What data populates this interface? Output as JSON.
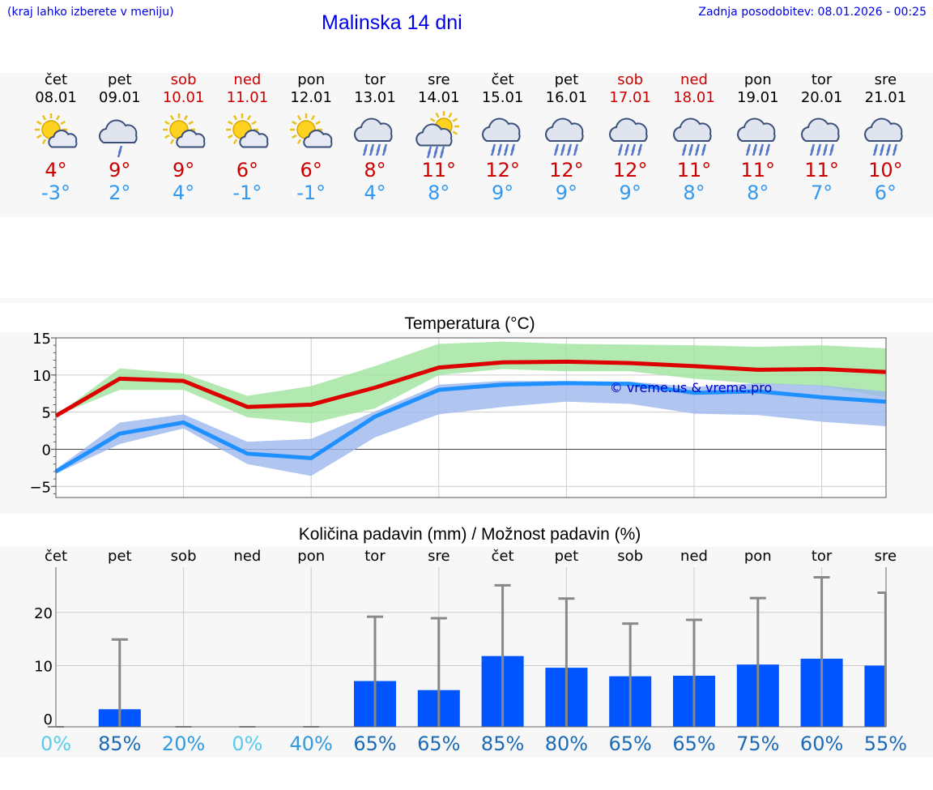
{
  "header": {
    "hint": "(kraj lahko izberete v meniju)",
    "title": "Malinska 14 dni",
    "updated": "Zadnja posodobitev: 08.01.2026 - 00:25"
  },
  "colors": {
    "max": "#dd0000",
    "min": "#1e90ff",
    "maxBand": "#9de39d",
    "minBand": "#9cb8ee",
    "bar": "#0055ff",
    "whisker": "#888888",
    "weekend": "#cc0000"
  },
  "days": [
    {
      "name": "čet",
      "date": "08.01",
      "weekend": false,
      "icon": "sun-cloud-icon",
      "tmax": "4°",
      "tmin": "-3°"
    },
    {
      "name": "pet",
      "date": "09.01",
      "weekend": false,
      "icon": "rain-icon",
      "tmax": "9°",
      "tmin": "2°"
    },
    {
      "name": "sob",
      "date": "10.01",
      "weekend": true,
      "icon": "sun-cloud-icon",
      "tmax": "9°",
      "tmin": "4°"
    },
    {
      "name": "ned",
      "date": "11.01",
      "weekend": true,
      "icon": "sun-cloud-icon",
      "tmax": "6°",
      "tmin": "-1°"
    },
    {
      "name": "pon",
      "date": "12.01",
      "weekend": false,
      "icon": "sun-cloud-icon",
      "tmax": "6°",
      "tmin": "-1°"
    },
    {
      "name": "tor",
      "date": "13.01",
      "weekend": false,
      "icon": "heavy-rain-icon",
      "tmax": "8°",
      "tmin": "4°"
    },
    {
      "name": "sre",
      "date": "14.01",
      "weekend": false,
      "icon": "sun-rain-icon",
      "tmax": "11°",
      "tmin": "8°"
    },
    {
      "name": "čet",
      "date": "15.01",
      "weekend": false,
      "icon": "heavy-rain-icon",
      "tmax": "12°",
      "tmin": "9°"
    },
    {
      "name": "pet",
      "date": "16.01",
      "weekend": false,
      "icon": "heavy-rain-icon",
      "tmax": "12°",
      "tmin": "9°"
    },
    {
      "name": "sob",
      "date": "17.01",
      "weekend": true,
      "icon": "heavy-rain-icon",
      "tmax": "12°",
      "tmin": "9°"
    },
    {
      "name": "ned",
      "date": "18.01",
      "weekend": true,
      "icon": "heavy-rain-icon",
      "tmax": "11°",
      "tmin": "8°"
    },
    {
      "name": "pon",
      "date": "19.01",
      "weekend": false,
      "icon": "heavy-rain-icon",
      "tmax": "11°",
      "tmin": "8°"
    },
    {
      "name": "tor",
      "date": "20.01",
      "weekend": false,
      "icon": "heavy-rain-icon",
      "tmax": "11°",
      "tmin": "7°"
    },
    {
      "name": "sre",
      "date": "21.01",
      "weekend": false,
      "icon": "heavy-rain-icon",
      "tmax": "10°",
      "tmin": "6°"
    }
  ],
  "chart_data": [
    {
      "type": "line",
      "title": "Temperatura (°C)",
      "watermark": "© vreme.us & vreme.pro",
      "ylim": [
        -6.5,
        15
      ],
      "yticks": [
        -5,
        0,
        5,
        10,
        15
      ],
      "ytick_labels": [
        "−5",
        "0",
        "5",
        "10",
        "15"
      ],
      "series": [
        {
          "name": "max",
          "values": [
            4.5,
            9.5,
            9.2,
            5.7,
            6.0,
            8.3,
            11.0,
            11.7,
            11.8,
            11.6,
            11.2,
            10.7,
            10.8,
            10.4
          ],
          "band_low": [
            4.5,
            8.0,
            8.0,
            4.3,
            3.5,
            5.5,
            10.0,
            10.8,
            10.5,
            10.5,
            9.5,
            8.8,
            8.5,
            7.0
          ],
          "band_high": [
            4.5,
            10.9,
            10.2,
            7.2,
            8.5,
            11.2,
            14.2,
            14.5,
            14.2,
            14.1,
            14.0,
            13.8,
            14.0,
            13.6
          ]
        },
        {
          "name": "min",
          "values": [
            -3.0,
            2.1,
            3.6,
            -0.6,
            -1.2,
            4.4,
            8.0,
            8.7,
            8.9,
            8.8,
            7.6,
            7.8,
            7.0,
            6.4
          ],
          "band_low": [
            -3.3,
            0.7,
            2.8,
            -2.0,
            -3.6,
            1.6,
            4.7,
            5.7,
            6.4,
            6.1,
            4.8,
            4.6,
            3.7,
            3.1
          ],
          "band_high": [
            -2.7,
            3.6,
            4.7,
            1.0,
            1.4,
            5.1,
            8.7,
            9.2,
            9.2,
            9.1,
            8.4,
            8.9,
            8.6,
            7.8
          ]
        }
      ]
    },
    {
      "type": "bar",
      "title": "Količina padavin (mm) / Možnost padavin (%)",
      "categories": [
        "čet",
        "pet",
        "sob",
        "ned",
        "pon",
        "tor",
        "sre",
        "čet",
        "pet",
        "sob",
        "ned",
        "pon",
        "tor",
        "sre"
      ],
      "ylim": [
        -1.5,
        28.5
      ],
      "yticks": [
        0,
        10,
        20
      ],
      "values": [
        0,
        1.8,
        0,
        0,
        0,
        7.1,
        5.4,
        11.8,
        9.6,
        8.0,
        8.1,
        10.2,
        11.3,
        10.0
      ],
      "error_high": [
        0,
        14.9,
        0,
        0,
        0,
        19.2,
        18.9,
        25.1,
        22.6,
        17.9,
        18.6,
        22.7,
        26.6,
        23.7
      ],
      "probability": [
        "0%",
        "85%",
        "20%",
        "0%",
        "40%",
        "65%",
        "65%",
        "85%",
        "80%",
        "65%",
        "65%",
        "75%",
        "60%",
        "55%"
      ],
      "probability_colors": [
        "#55ccee",
        "#1a6ab8",
        "#3399dd",
        "#55ccee",
        "#3399dd",
        "#1a6ab8",
        "#1a6ab8",
        "#1a6ab8",
        "#1a6ab8",
        "#1a6ab8",
        "#1a6ab8",
        "#1a6ab8",
        "#1a6ab8",
        "#1a6ab8"
      ]
    }
  ]
}
